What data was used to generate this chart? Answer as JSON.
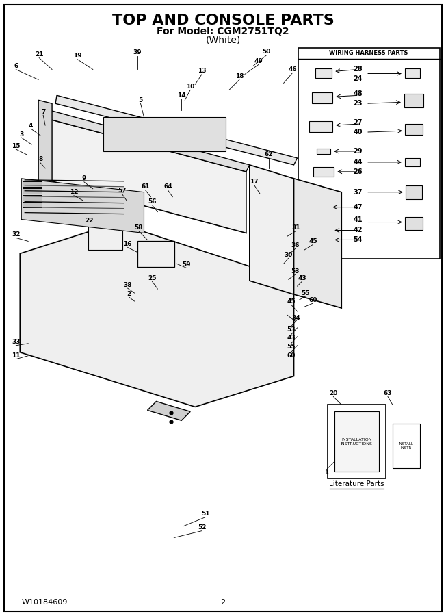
{
  "title": "TOP AND CONSOLE PARTS",
  "subtitle": "For Model: CGM2751TQ2",
  "subtitle2": "(White)",
  "footer_left": "W10184609",
  "footer_center": "2",
  "bg_color": "#ffffff",
  "border_color": "#000000",
  "wiring_box_title": "WIRING HARNESS PARTS",
  "title_fontsize": 16,
  "subtitle_fontsize": 10,
  "footer_fontsize": 8,
  "fig_width": 6.52,
  "fig_height": 9.0
}
